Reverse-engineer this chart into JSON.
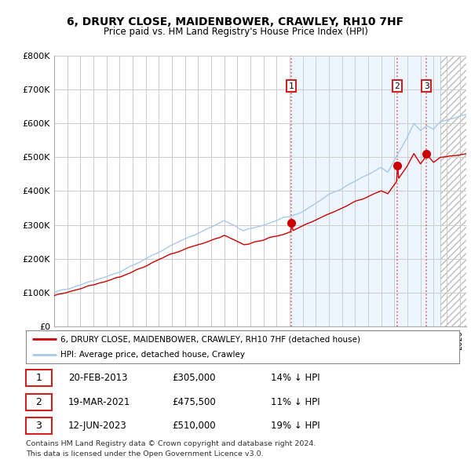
{
  "title_line1": "6, DRURY CLOSE, MAIDENBOWER, CRAWLEY, RH10 7HF",
  "title_line2": "Price paid vs. HM Land Registry's House Price Index (HPI)",
  "xlim": [
    1995.0,
    2026.5
  ],
  "ylim": [
    0,
    800000
  ],
  "yticks": [
    0,
    100000,
    200000,
    300000,
    400000,
    500000,
    600000,
    700000,
    800000
  ],
  "ytick_labels": [
    "£0",
    "£100K",
    "£200K",
    "£300K",
    "£400K",
    "£500K",
    "£600K",
    "£700K",
    "£800K"
  ],
  "xticks": [
    1995,
    1996,
    1997,
    1998,
    1999,
    2000,
    2001,
    2002,
    2003,
    2004,
    2005,
    2006,
    2007,
    2008,
    2009,
    2010,
    2011,
    2012,
    2013,
    2014,
    2015,
    2016,
    2017,
    2018,
    2019,
    2020,
    2021,
    2022,
    2023,
    2024,
    2025,
    2026
  ],
  "hpi_color": "#a8c8e8",
  "price_color": "#cc0000",
  "sale_marker_color": "#cc0000",
  "sale_dates": [
    2013.13,
    2021.22,
    2023.46
  ],
  "sale_prices": [
    305000,
    475500,
    510000
  ],
  "sale_labels": [
    "1",
    "2",
    "3"
  ],
  "vline_color": "#dd4444",
  "shade_start": 2013.13,
  "hatch_start": 2024.5,
  "sale1_date_str": "20-FEB-2013",
  "sale1_price_str": "£305,000",
  "sale1_hpi_str": "14% ↓ HPI",
  "sale2_date_str": "19-MAR-2021",
  "sale2_price_str": "£475,500",
  "sale2_hpi_str": "11% ↓ HPI",
  "sale3_date_str": "12-JUN-2023",
  "sale3_price_str": "£510,000",
  "sale3_hpi_str": "19% ↓ HPI",
  "legend_label1": "6, DRURY CLOSE, MAIDENBOWER, CRAWLEY, RH10 7HF (detached house)",
  "legend_label2": "HPI: Average price, detached house, Crawley",
  "footnote1": "Contains HM Land Registry data © Crown copyright and database right 2024.",
  "footnote2": "This data is licensed under the Open Government Licence v3.0.",
  "grid_color": "#cccccc",
  "background_color": "#ffffff"
}
